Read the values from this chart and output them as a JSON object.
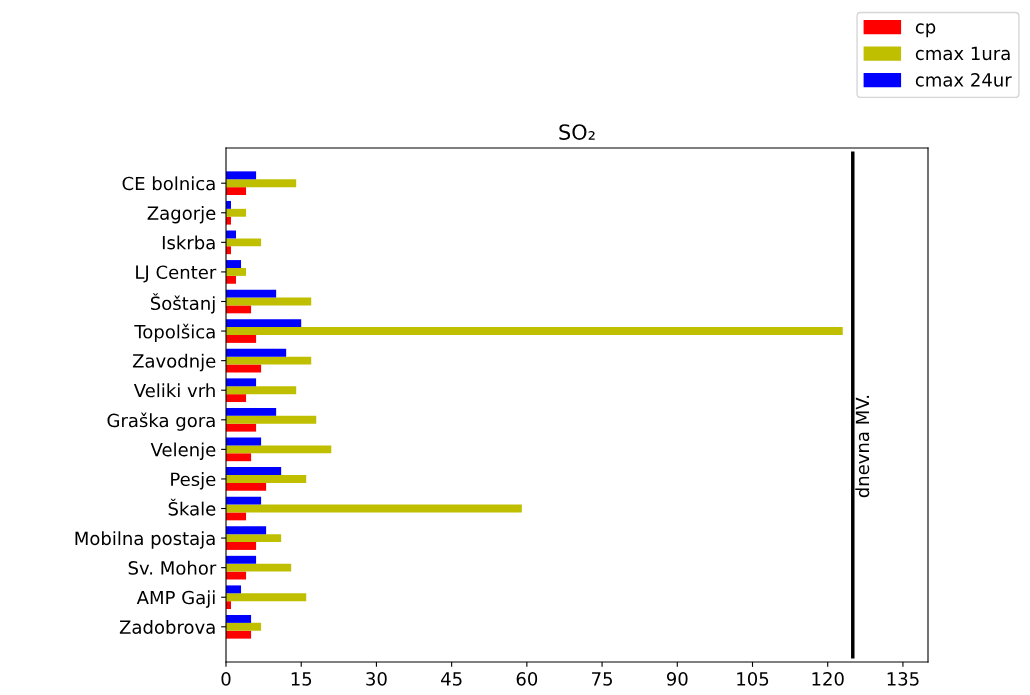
{
  "chart_data": {
    "type": "bar",
    "orientation": "horizontal",
    "title": "SO₂",
    "categories": [
      "CE bolnica",
      "Zagorje",
      "Iskrba",
      "LJ Center",
      "Šoštanj",
      "Topolšica",
      "Zavodnje",
      "Veliki vrh",
      "Graška gora",
      "Velenje",
      "Pesje",
      "Škale",
      "Mobilna postaja",
      "Sv. Mohor",
      "AMP Gaji",
      "Zadobrova"
    ],
    "series": [
      {
        "name": "cp",
        "color": "#ff0000",
        "values": [
          4,
          1,
          1,
          2,
          5,
          6,
          7,
          4,
          6,
          5,
          8,
          4,
          6,
          4,
          1,
          5
        ]
      },
      {
        "name": "cmax 1ura",
        "color": "#bfbf00",
        "values": [
          14,
          4,
          7,
          4,
          17,
          123,
          17,
          14,
          18,
          21,
          16,
          59,
          11,
          13,
          16,
          7
        ]
      },
      {
        "name": "cmax 24ur",
        "color": "#0000ff",
        "values": [
          6,
          1,
          2,
          3,
          10,
          15,
          12,
          6,
          10,
          7,
          11,
          7,
          8,
          6,
          3,
          5
        ]
      }
    ],
    "xlim": [
      0,
      140
    ],
    "xticks": [
      0,
      15,
      30,
      45,
      60,
      75,
      90,
      105,
      120,
      135
    ],
    "ref_lines": [
      {
        "axis": "x",
        "value": 125,
        "label": "dnevna MV.",
        "color": "#000000",
        "line_style": "solid"
      }
    ],
    "legend": "top right",
    "grid": false
  }
}
